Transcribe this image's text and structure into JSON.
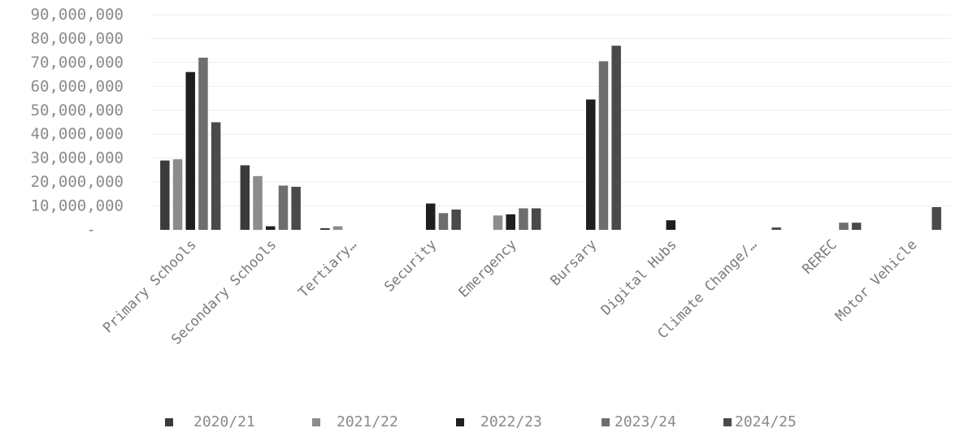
{
  "chart_data": {
    "type": "bar",
    "categories": [
      "Primary Schools",
      "Secondary Schools",
      "Tertiary…",
      "Security",
      "Emergency",
      "Bursary",
      "Digital Hubs",
      "Climate Change/…",
      "REREC",
      "Motor Vehicle"
    ],
    "series": [
      {
        "name": "2020/21",
        "color": "#3b3b3b",
        "values": [
          29000000,
          27000000,
          500000,
          0,
          0,
          0,
          0,
          0,
          0,
          0
        ]
      },
      {
        "name": "2021/22",
        "color": "#8c8c8c",
        "values": [
          29500000,
          22500000,
          1500000,
          0,
          6000000,
          0,
          0,
          0,
          0,
          0
        ]
      },
      {
        "name": "2022/23",
        "color": "#1f1f1f",
        "values": [
          66000000,
          1500000,
          0,
          11000000,
          6500000,
          54500000,
          4000000,
          0,
          0,
          0
        ]
      },
      {
        "name": "2023/24",
        "color": "#6e6e6e",
        "values": [
          72000000,
          18500000,
          0,
          7000000,
          9000000,
          70500000,
          0,
          0,
          3000000,
          0
        ]
      },
      {
        "name": "2024/25",
        "color": "#4a4a4a",
        "values": [
          45000000,
          18000000,
          0,
          8500000,
          9000000,
          77000000,
          0,
          1000000,
          3000000,
          9500000
        ]
      }
    ],
    "y_ticks": [
      "-",
      "10,000,000",
      "20,000,000",
      "30,000,000",
      "40,000,000",
      "50,000,000",
      "60,000,000",
      "70,000,000",
      "80,000,000",
      "90,000,000"
    ],
    "ylim": [
      0,
      90000000
    ],
    "xlabel": "",
    "ylabel": "",
    "grid": true,
    "legend": "bottom"
  }
}
